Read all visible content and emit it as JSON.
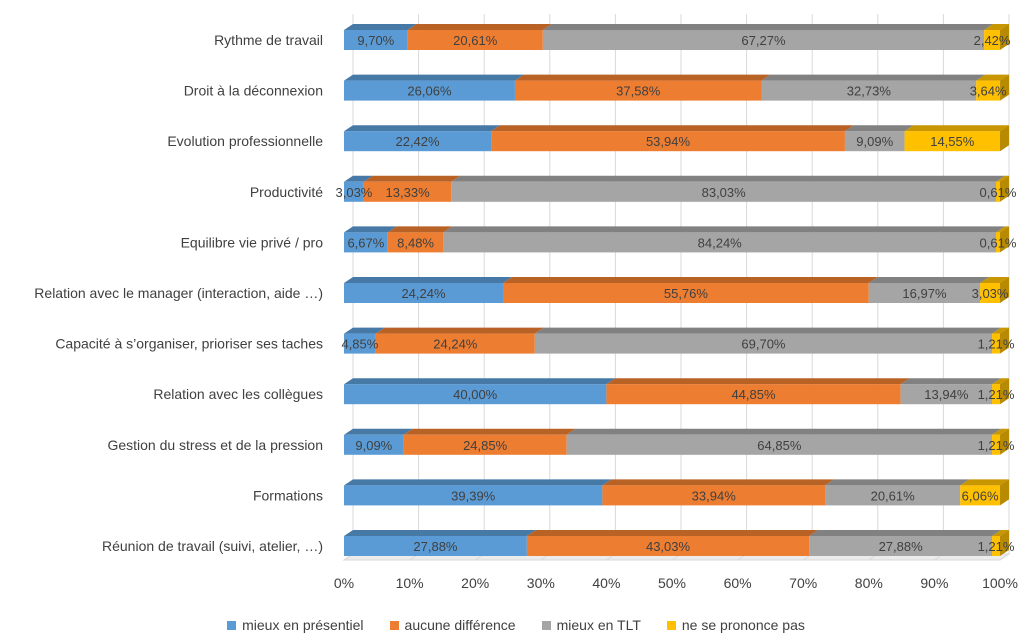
{
  "chart_data": {
    "type": "bar",
    "orientation": "horizontal",
    "stacked": "percent",
    "categories": [
      "Rythme de travail",
      "Droit à la déconnexion",
      "Evolution professionnelle",
      "Productivité",
      "Equilibre vie privé / pro",
      "Relation avec le manager (interaction, aide …)",
      "Capacité à s’organiser, prioriser ses taches",
      "Relation avec les collègues",
      "Gestion du stress et de la pression",
      "Formations",
      "Réunion de travail (suivi, atelier, …)"
    ],
    "series": [
      {
        "name": "mieux en présentiel",
        "color": "#5B9BD5",
        "values": [
          9.7,
          26.06,
          22.42,
          3.03,
          6.67,
          24.24,
          4.85,
          40.0,
          9.09,
          39.39,
          27.88
        ],
        "labels": [
          "9,70%",
          "26,06%",
          "22,42%",
          "3,03%",
          "6,67%",
          "24,24%",
          "4,85%",
          "40,00%",
          "9,09%",
          "39,39%",
          "27,88%"
        ]
      },
      {
        "name": "aucune différence",
        "color": "#ED7D31",
        "values": [
          20.61,
          37.58,
          53.94,
          13.33,
          8.48,
          55.76,
          24.24,
          44.85,
          24.85,
          33.94,
          43.03
        ],
        "labels": [
          "20,61%",
          "37,58%",
          "53,94%",
          "13,33%",
          "8,48%",
          "55,76%",
          "24,24%",
          "44,85%",
          "24,85%",
          "33,94%",
          "43,03%"
        ]
      },
      {
        "name": "mieux en TLT",
        "color": "#A5A5A5",
        "values": [
          67.27,
          32.73,
          9.09,
          83.03,
          84.24,
          16.97,
          69.7,
          13.94,
          64.85,
          20.61,
          27.88
        ],
        "labels": [
          "67,27%",
          "32,73%",
          "9,09%",
          "83,03%",
          "84,24%",
          "16,97%",
          "69,70%",
          "13,94%",
          "64,85%",
          "20,61%",
          "27,88%"
        ]
      },
      {
        "name": "ne se prononce pas",
        "color": "#FFC000",
        "values": [
          2.42,
          3.64,
          14.55,
          0.61,
          0.61,
          3.03,
          1.21,
          1.21,
          1.21,
          6.06,
          1.21
        ],
        "labels": [
          "2,42%",
          "3,64%",
          "14,55%",
          "0,61%",
          "0,61%",
          "3,03%",
          "1,21%",
          "1,21%",
          "1,21%",
          "6,06%",
          "1,21%"
        ]
      }
    ],
    "xlim": [
      0,
      100
    ],
    "x_ticks": [
      "0%",
      "10%",
      "20%",
      "30%",
      "40%",
      "50%",
      "60%",
      "70%",
      "80%",
      "90%",
      "100%"
    ],
    "grid": true,
    "legend_position": "bottom"
  }
}
